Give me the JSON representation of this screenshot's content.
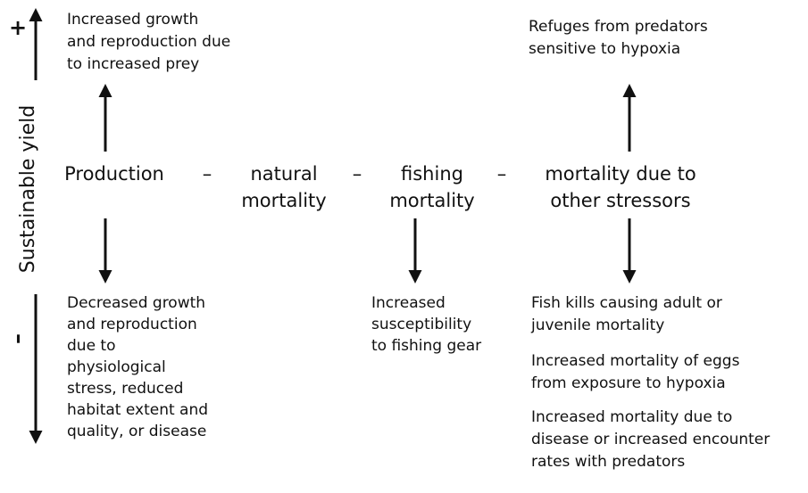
{
  "axis": {
    "label": "Sustainable yield",
    "plus": "+",
    "minus": "–"
  },
  "terms": [
    {
      "lines": [
        "Production"
      ]
    },
    {
      "lines": [
        "natural",
        "mortality"
      ]
    },
    {
      "lines": [
        "fishing",
        "mortality"
      ]
    },
    {
      "lines": [
        "mortality due to",
        "other stressors"
      ]
    }
  ],
  "operators": [
    "–",
    "–",
    "–"
  ],
  "effects": {
    "production_up": {
      "lines": [
        "Increased growth",
        "and reproduction due",
        "to increased prey"
      ]
    },
    "other_up": {
      "lines": [
        "Refuges from predators",
        "sensitive to hypoxia"
      ]
    },
    "production_down": {
      "lines": [
        "Decreased growth",
        "and reproduction",
        "due to",
        "physiological",
        "stress, reduced",
        "habitat extent and",
        "quality, or disease"
      ]
    },
    "fishing_down": {
      "lines": [
        "Increased",
        "susceptibility",
        "to fishing gear"
      ]
    },
    "other_down": [
      {
        "lines": [
          "Fish kills causing adult or",
          "juvenile mortality"
        ]
      },
      {
        "lines": [
          "Increased mortality of eggs",
          "from exposure to hypoxia"
        ]
      },
      {
        "lines": [
          "Increased mortality due to",
          "disease or increased encounter",
          "rates with predators"
        ]
      }
    ]
  }
}
